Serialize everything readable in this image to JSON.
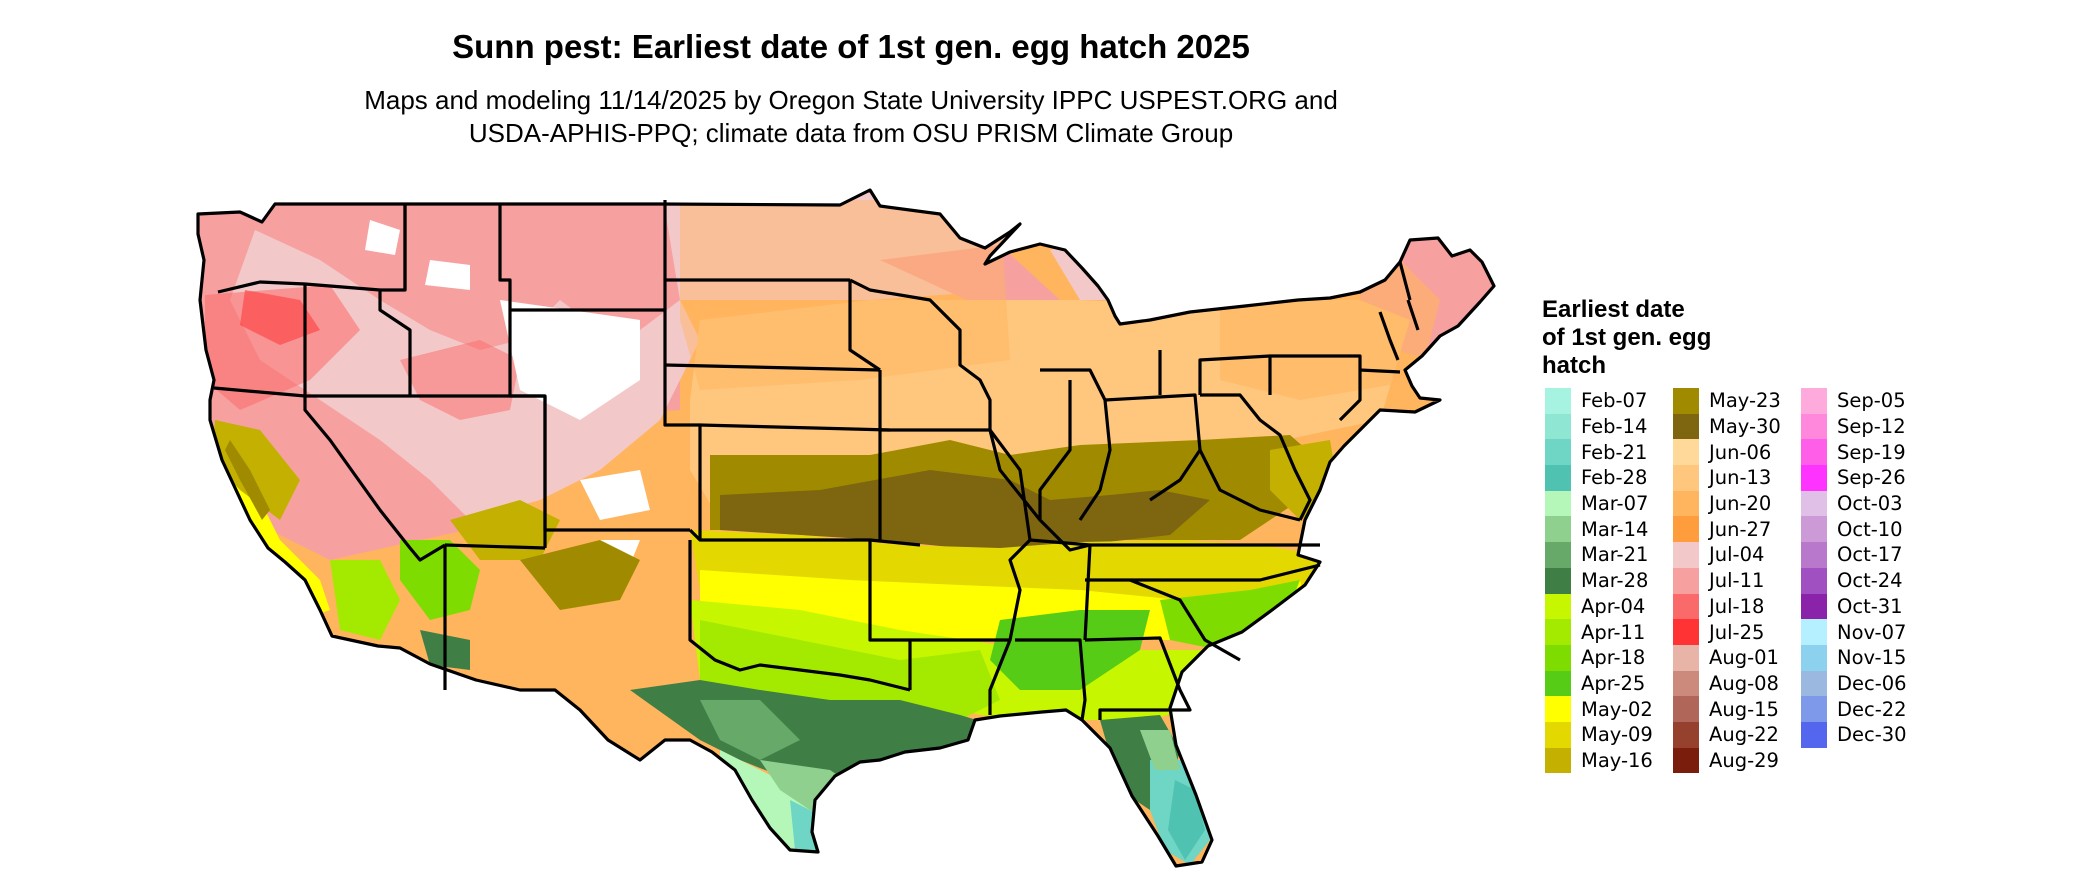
{
  "header": {
    "title": "Sunn pest: Earliest date of 1st gen. egg hatch 2025",
    "subtitle_line1": "Maps and modeling 11/14/2025 by Oregon State University IPPC USPEST.ORG and",
    "subtitle_line2": "USDA-APHIS-PPQ; climate data from OSU PRISM Climate Group"
  },
  "legend": {
    "title_line1": "Earliest date",
    "title_line2": "of 1st gen. egg",
    "title_line3": "hatch",
    "columns": [
      [
        {
          "label": "Feb-07",
          "color": "#a7f3e2"
        },
        {
          "label": "Feb-14",
          "color": "#8ee6d3"
        },
        {
          "label": "Feb-21",
          "color": "#6fd5c4"
        },
        {
          "label": "Feb-28",
          "color": "#4fc2b2"
        },
        {
          "label": "Mar-07",
          "color": "#b4f7b8"
        },
        {
          "label": "Mar-14",
          "color": "#8fd08f"
        },
        {
          "label": "Mar-21",
          "color": "#66a968"
        },
        {
          "label": "Mar-28",
          "color": "#3f7e45"
        },
        {
          "label": "Apr-04",
          "color": "#c6f700"
        },
        {
          "label": "Apr-11",
          "color": "#a4ea00"
        },
        {
          "label": "Apr-18",
          "color": "#7fdc00"
        },
        {
          "label": "Apr-25",
          "color": "#56cc16"
        },
        {
          "label": "May-02",
          "color": "#ffff00"
        },
        {
          "label": "May-09",
          "color": "#e3d900"
        },
        {
          "label": "May-16",
          "color": "#c3b000"
        }
      ],
      [
        {
          "label": "May-23",
          "color": "#a08b00"
        },
        {
          "label": "May-30",
          "color": "#7e6510"
        },
        {
          "label": "Jun-06",
          "color": "#ffd99a"
        },
        {
          "label": "Jun-13",
          "color": "#ffc77d"
        },
        {
          "label": "Jun-20",
          "color": "#ffb45e"
        },
        {
          "label": "Jun-27",
          "color": "#ff9c3c"
        },
        {
          "label": "Jul-04",
          "color": "#f3c8c8"
        },
        {
          "label": "Jul-11",
          "color": "#f7a0a0"
        },
        {
          "label": "Jul-18",
          "color": "#fb6a6a"
        },
        {
          "label": "Jul-25",
          "color": "#ff3333"
        },
        {
          "label": "Aug-01",
          "color": "#e8b4a8"
        },
        {
          "label": "Aug-08",
          "color": "#cc8a7c"
        },
        {
          "label": "Aug-15",
          "color": "#b0675a"
        },
        {
          "label": "Aug-22",
          "color": "#96402e"
        },
        {
          "label": "Aug-29",
          "color": "#7a1d0c"
        }
      ],
      [
        {
          "label": "Sep-05",
          "color": "#ffaadd"
        },
        {
          "label": "Sep-12",
          "color": "#ff88dd"
        },
        {
          "label": "Sep-19",
          "color": "#ff5ee8"
        },
        {
          "label": "Sep-26",
          "color": "#ff33ff"
        },
        {
          "label": "Oct-03",
          "color": "#e0c0e6"
        },
        {
          "label": "Oct-10",
          "color": "#cc9ad6"
        },
        {
          "label": "Oct-17",
          "color": "#b878cc"
        },
        {
          "label": "Oct-24",
          "color": "#a050c0"
        },
        {
          "label": "Oct-31",
          "color": "#8a22aa"
        },
        {
          "label": "Nov-07",
          "color": "#b4f0ff"
        },
        {
          "label": "Nov-15",
          "color": "#8cd2ee"
        },
        {
          "label": "Dec-06",
          "color": "#9ab8e0"
        },
        {
          "label": "Dec-22",
          "color": "#7e98ea"
        },
        {
          "label": "Dec-30",
          "color": "#5566ee"
        }
      ]
    ]
  }
}
